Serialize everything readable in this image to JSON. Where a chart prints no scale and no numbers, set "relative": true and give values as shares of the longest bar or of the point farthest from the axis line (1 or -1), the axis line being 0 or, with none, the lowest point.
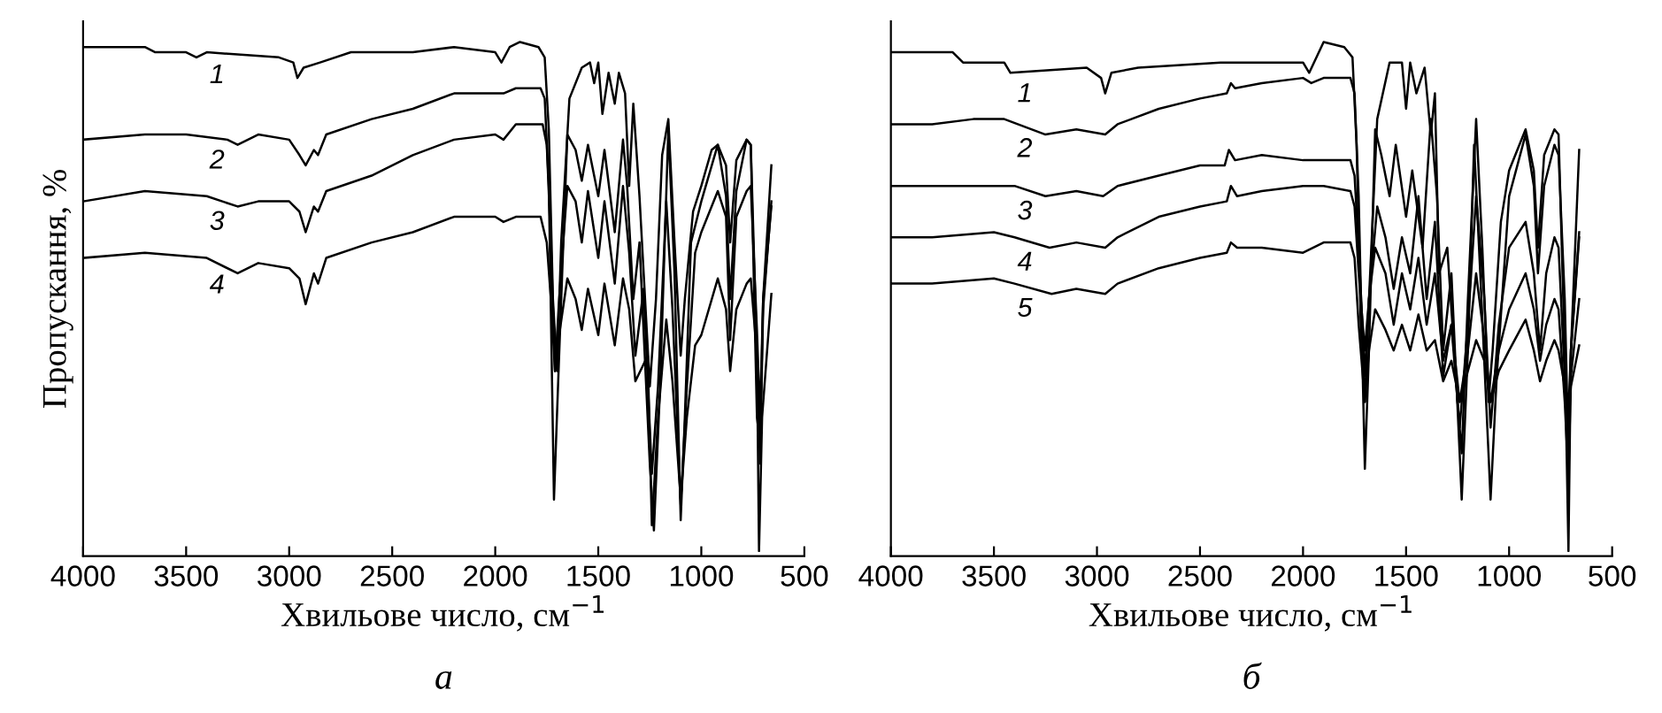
{
  "chart_data": [
    {
      "type": "line",
      "relative": true,
      "xlabel": "Хвильове число, см$^{−1}$",
      "ylabel": "Пропускання, %",
      "annotations": [
        "а"
      ],
      "xlim": [
        4000,
        500
      ],
      "xticks": [
        4000,
        3500,
        3000,
        2500,
        2000,
        1500,
        1000,
        500
      ],
      "tick_labels": "x",
      "grid": false,
      "legend": false,
      "line_style": "solid",
      "marker": "none",
      "series": [
        {
          "name": "1",
          "color": "#000000",
          "x": [
            4000,
            3800,
            3700,
            3650,
            3500,
            3450,
            3400,
            3050,
            2980,
            2960,
            2930,
            2850,
            2700,
            2400,
            2200,
            2000,
            1970,
            1930,
            1880,
            1790,
            1760,
            1740,
            1720,
            1700,
            1680,
            1640,
            1580,
            1540,
            1520,
            1500,
            1480,
            1450,
            1420,
            1400,
            1370,
            1350,
            1330,
            1300,
            1250,
            1220,
            1190,
            1160,
            1130,
            1100,
            1080,
            1040,
            1000,
            950,
            920,
            880,
            860,
            830,
            780,
            760,
            730,
            715,
            700,
            660
          ],
          "values": [
            0.99,
            0.99,
            0.99,
            0.98,
            0.98,
            0.97,
            0.98,
            0.97,
            0.96,
            0.93,
            0.95,
            0.96,
            0.98,
            0.98,
            0.99,
            0.98,
            0.96,
            0.99,
            1.0,
            0.99,
            0.97,
            0.83,
            0.5,
            0.36,
            0.61,
            0.89,
            0.95,
            0.96,
            0.92,
            0.96,
            0.86,
            0.94,
            0.88,
            0.94,
            0.9,
            0.72,
            0.88,
            0.7,
            0.33,
            0.5,
            0.78,
            0.85,
            0.61,
            0.39,
            0.5,
            0.67,
            0.72,
            0.79,
            0.8,
            0.76,
            0.61,
            0.77,
            0.81,
            0.8,
            0.27,
            0.22,
            0.5,
            0.76
          ]
        },
        {
          "name": "2",
          "color": "#000000",
          "x": [
            4000,
            3700,
            3500,
            3300,
            3250,
            3150,
            3000,
            2950,
            2920,
            2880,
            2860,
            2820,
            2600,
            2400,
            2200,
            2000,
            1960,
            1900,
            1780,
            1760,
            1740,
            1715,
            1690,
            1650,
            1610,
            1580,
            1550,
            1500,
            1470,
            1420,
            1380,
            1360,
            1330,
            1300,
            1250,
            1230,
            1200,
            1160,
            1130,
            1100,
            1080,
            1050,
            1000,
            920,
            880,
            860,
            830,
            780,
            760,
            730,
            715,
            700,
            660
          ],
          "values": [
            0.81,
            0.82,
            0.82,
            0.81,
            0.8,
            0.82,
            0.81,
            0.78,
            0.76,
            0.79,
            0.78,
            0.82,
            0.85,
            0.87,
            0.9,
            0.9,
            0.9,
            0.91,
            0.91,
            0.89,
            0.72,
            0.11,
            0.39,
            0.82,
            0.79,
            0.73,
            0.8,
            0.7,
            0.79,
            0.63,
            0.81,
            0.72,
            0.5,
            0.61,
            0.18,
            0.05,
            0.33,
            0.83,
            0.55,
            0.07,
            0.27,
            0.61,
            0.69,
            0.8,
            0.7,
            0.5,
            0.71,
            0.81,
            0.8,
            0.39,
            0.18,
            0.48,
            0.69
          ]
        },
        {
          "name": "3",
          "color": "#000000",
          "x": [
            4000,
            3700,
            3400,
            3250,
            3150,
            3000,
            2950,
            2920,
            2880,
            2860,
            2820,
            2600,
            2400,
            2200,
            2000,
            1960,
            1900,
            1770,
            1750,
            1730,
            1710,
            1690,
            1650,
            1610,
            1580,
            1550,
            1500,
            1470,
            1420,
            1380,
            1350,
            1320,
            1280,
            1240,
            1210,
            1170,
            1140,
            1100,
            1070,
            1030,
            1000,
            920,
            880,
            860,
            830,
            780,
            760,
            730,
            715,
            700,
            660
          ],
          "values": [
            0.69,
            0.71,
            0.7,
            0.68,
            0.69,
            0.69,
            0.67,
            0.63,
            0.68,
            0.67,
            0.71,
            0.74,
            0.78,
            0.81,
            0.82,
            0.81,
            0.84,
            0.84,
            0.8,
            0.61,
            0.36,
            0.5,
            0.72,
            0.69,
            0.61,
            0.71,
            0.58,
            0.69,
            0.53,
            0.72,
            0.59,
            0.39,
            0.52,
            0.16,
            0.33,
            0.69,
            0.48,
            0.1,
            0.33,
            0.59,
            0.63,
            0.71,
            0.66,
            0.42,
            0.66,
            0.71,
            0.72,
            0.44,
            0.27,
            0.5,
            0.68
          ]
        },
        {
          "name": "4",
          "color": "#000000",
          "x": [
            4000,
            3700,
            3400,
            3250,
            3150,
            3000,
            2950,
            2920,
            2880,
            2860,
            2820,
            2600,
            2400,
            2200,
            2000,
            1960,
            1900,
            1780,
            1750,
            1730,
            1710,
            1690,
            1650,
            1610,
            1580,
            1550,
            1500,
            1470,
            1420,
            1380,
            1350,
            1320,
            1260,
            1240,
            1210,
            1170,
            1140,
            1100,
            1070,
            1030,
            1000,
            920,
            880,
            860,
            830,
            780,
            760,
            730,
            720,
            705,
            660
          ],
          "values": [
            0.58,
            0.59,
            0.58,
            0.55,
            0.57,
            0.56,
            0.54,
            0.49,
            0.55,
            0.53,
            0.58,
            0.61,
            0.63,
            0.66,
            0.66,
            0.65,
            0.66,
            0.66,
            0.61,
            0.5,
            0.36,
            0.43,
            0.54,
            0.5,
            0.44,
            0.52,
            0.43,
            0.53,
            0.41,
            0.54,
            0.48,
            0.34,
            0.39,
            0.06,
            0.27,
            0.46,
            0.34,
            0.11,
            0.27,
            0.41,
            0.43,
            0.54,
            0.48,
            0.36,
            0.48,
            0.53,
            0.54,
            0.39,
            0.01,
            0.27,
            0.51
          ]
        }
      ]
    },
    {
      "type": "line",
      "relative": true,
      "xlabel": "Хвильове число, см$^{−1}$",
      "annotations": [
        "б"
      ],
      "xlim": [
        4000,
        500
      ],
      "xticks": [
        4000,
        3500,
        3000,
        2500,
        2000,
        1500,
        1000,
        500
      ],
      "tick_labels": "x",
      "grid": false,
      "legend": false,
      "line_style": "solid",
      "marker": "none",
      "series": [
        {
          "name": "1",
          "color": "#000000",
          "x": [
            4000,
            3700,
            3650,
            3450,
            3420,
            3050,
            2980,
            2960,
            2930,
            2800,
            2400,
            2000,
            1970,
            1900,
            1800,
            1760,
            1740,
            1720,
            1700,
            1680,
            1640,
            1580,
            1520,
            1500,
            1480,
            1450,
            1410,
            1380,
            1360,
            1340,
            1300,
            1250,
            1230,
            1200,
            1160,
            1130,
            1100,
            1080,
            1040,
            1000,
            920,
            880,
            860,
            830,
            780,
            760,
            730,
            712,
            700,
            660
          ],
          "values": [
            0.98,
            0.98,
            0.96,
            0.96,
            0.94,
            0.95,
            0.93,
            0.9,
            0.94,
            0.95,
            0.96,
            0.96,
            0.94,
            1.0,
            0.99,
            0.97,
            0.8,
            0.45,
            0.3,
            0.5,
            0.85,
            0.96,
            0.96,
            0.87,
            0.96,
            0.9,
            0.95,
            0.82,
            0.9,
            0.55,
            0.6,
            0.3,
            0.2,
            0.5,
            0.85,
            0.6,
            0.3,
            0.4,
            0.65,
            0.75,
            0.83,
            0.75,
            0.6,
            0.78,
            0.83,
            0.82,
            0.4,
            0.01,
            0.4,
            0.79
          ]
        },
        {
          "name": "2",
          "color": "#000000",
          "x": [
            4000,
            3800,
            3600,
            3450,
            3250,
            3100,
            2960,
            2900,
            2700,
            2500,
            2370,
            2350,
            2330,
            2200,
            2000,
            1960,
            1900,
            1770,
            1750,
            1730,
            1700,
            1680,
            1650,
            1620,
            1580,
            1550,
            1500,
            1470,
            1420,
            1380,
            1350,
            1320,
            1280,
            1240,
            1230,
            1200,
            1170,
            1140,
            1100,
            1090,
            1060,
            1000,
            920,
            880,
            860,
            830,
            780,
            760,
            730,
            715,
            700,
            660
          ],
          "values": [
            0.84,
            0.84,
            0.85,
            0.85,
            0.82,
            0.83,
            0.82,
            0.84,
            0.87,
            0.89,
            0.9,
            0.92,
            0.91,
            0.92,
            0.93,
            0.92,
            0.93,
            0.93,
            0.9,
            0.7,
            0.17,
            0.4,
            0.83,
            0.78,
            0.7,
            0.8,
            0.66,
            0.75,
            0.6,
            0.85,
            0.7,
            0.4,
            0.55,
            0.2,
            0.11,
            0.4,
            0.8,
            0.55,
            0.2,
            0.11,
            0.35,
            0.7,
            0.82,
            0.72,
            0.55,
            0.72,
            0.8,
            0.78,
            0.5,
            0.25,
            0.4,
            0.63
          ]
        },
        {
          "name": "3",
          "color": "#000000",
          "x": [
            4000,
            3800,
            3500,
            3400,
            3250,
            3100,
            2970,
            2900,
            2700,
            2500,
            2380,
            2360,
            2330,
            2200,
            2000,
            1900,
            1770,
            1750,
            1730,
            1700,
            1680,
            1640,
            1600,
            1560,
            1520,
            1480,
            1440,
            1400,
            1360,
            1320,
            1280,
            1240,
            1200,
            1160,
            1120,
            1090,
            1050,
            1000,
            920,
            880,
            850,
            820,
            780,
            760,
            730,
            712,
            700,
            660
          ],
          "values": [
            0.72,
            0.72,
            0.72,
            0.72,
            0.7,
            0.71,
            0.7,
            0.72,
            0.74,
            0.76,
            0.76,
            0.79,
            0.77,
            0.78,
            0.77,
            0.77,
            0.77,
            0.74,
            0.6,
            0.35,
            0.5,
            0.68,
            0.62,
            0.52,
            0.62,
            0.55,
            0.7,
            0.5,
            0.65,
            0.35,
            0.45,
            0.25,
            0.45,
            0.7,
            0.5,
            0.25,
            0.45,
            0.6,
            0.65,
            0.55,
            0.4,
            0.55,
            0.62,
            0.6,
            0.35,
            0.2,
            0.4,
            0.62
          ]
        },
        {
          "name": "4",
          "color": "#000000",
          "x": [
            4000,
            3800,
            3500,
            3400,
            3230,
            3100,
            2960,
            2900,
            2700,
            2500,
            2370,
            2350,
            2320,
            2200,
            2000,
            1900,
            1770,
            1750,
            1730,
            1700,
            1680,
            1650,
            1600,
            1560,
            1520,
            1480,
            1440,
            1400,
            1360,
            1320,
            1280,
            1240,
            1200,
            1160,
            1120,
            1090,
            1050,
            1000,
            920,
            880,
            850,
            820,
            780,
            760,
            730,
            712,
            700,
            660
          ],
          "values": [
            0.62,
            0.62,
            0.63,
            0.62,
            0.6,
            0.61,
            0.6,
            0.62,
            0.66,
            0.68,
            0.69,
            0.72,
            0.7,
            0.71,
            0.72,
            0.72,
            0.71,
            0.68,
            0.55,
            0.4,
            0.5,
            0.6,
            0.55,
            0.45,
            0.55,
            0.48,
            0.58,
            0.45,
            0.55,
            0.38,
            0.45,
            0.3,
            0.4,
            0.55,
            0.42,
            0.3,
            0.4,
            0.48,
            0.55,
            0.48,
            0.38,
            0.45,
            0.5,
            0.48,
            0.3,
            0.15,
            0.35,
            0.5
          ]
        },
        {
          "name": "5",
          "color": "#000000",
          "x": [
            4000,
            3800,
            3500,
            3400,
            3220,
            3100,
            2960,
            2900,
            2700,
            2500,
            2370,
            2350,
            2320,
            2200,
            2000,
            1950,
            1900,
            1770,
            1750,
            1730,
            1700,
            1680,
            1650,
            1600,
            1560,
            1520,
            1480,
            1440,
            1400,
            1360,
            1320,
            1280,
            1240,
            1200,
            1160,
            1120,
            1090,
            1050,
            1000,
            920,
            880,
            850,
            820,
            780,
            760,
            730,
            712,
            700,
            660
          ],
          "values": [
            0.53,
            0.53,
            0.54,
            0.53,
            0.51,
            0.52,
            0.51,
            0.53,
            0.56,
            0.58,
            0.59,
            0.61,
            0.6,
            0.6,
            0.59,
            0.6,
            0.61,
            0.61,
            0.58,
            0.45,
            0.3,
            0.4,
            0.48,
            0.44,
            0.4,
            0.45,
            0.4,
            0.47,
            0.4,
            0.42,
            0.34,
            0.38,
            0.3,
            0.36,
            0.42,
            0.38,
            0.3,
            0.36,
            0.4,
            0.46,
            0.4,
            0.34,
            0.38,
            0.42,
            0.4,
            0.33,
            0.25,
            0.33,
            0.41
          ]
        }
      ]
    }
  ]
}
